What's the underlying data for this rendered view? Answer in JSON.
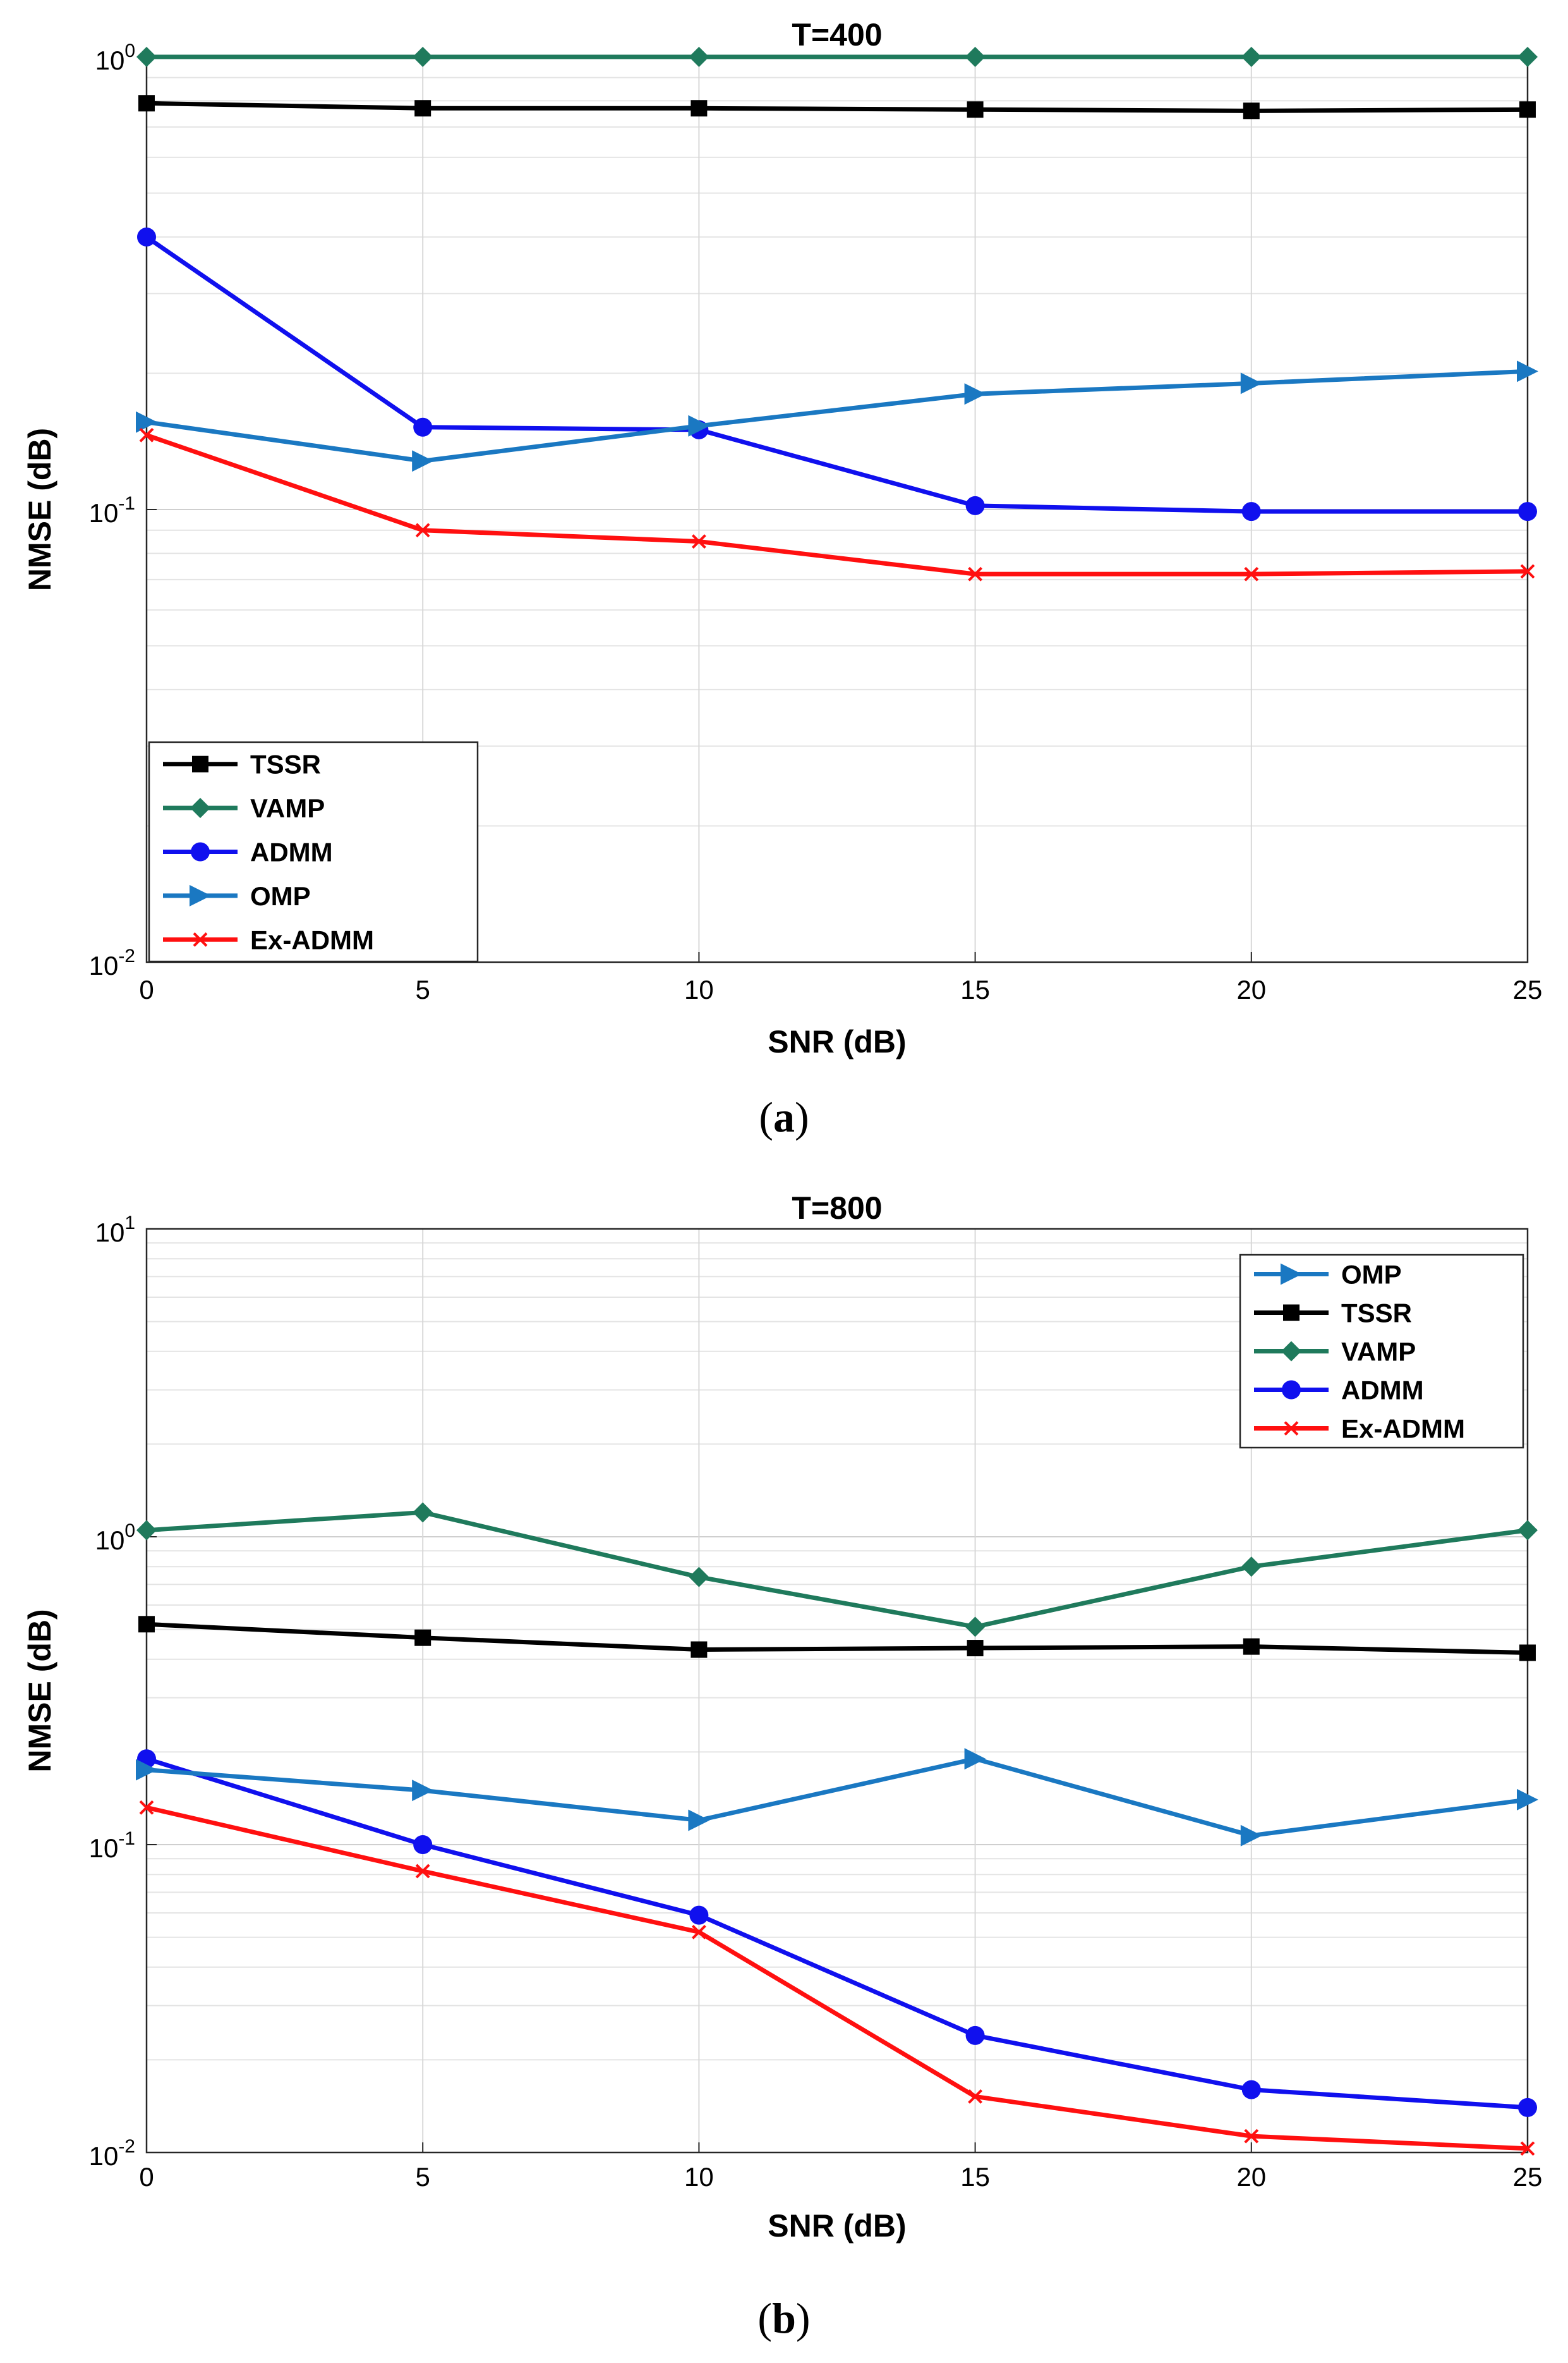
{
  "chart_data": [
    {
      "type": "line",
      "title": "T=400",
      "xlabel": "SNR (dB)",
      "ylabel": "NMSE (dB)",
      "caption": "(a)",
      "x": [
        0,
        5,
        10,
        15,
        20,
        25
      ],
      "x_ticks": [
        "0",
        "5",
        "10",
        "15",
        "20",
        "25"
      ],
      "y_scale": "log",
      "ylim": [
        0.01,
        1
      ],
      "y_ticks": [
        {
          "base": "10",
          "exp": "0",
          "value": 1
        },
        {
          "base": "10",
          "exp": "-1",
          "value": 0.1
        },
        {
          "base": "10",
          "exp": "-2",
          "value": 0.01
        }
      ],
      "grid": true,
      "legend_position": "bottom-left",
      "legend_order": [
        "TSSR",
        "VAMP",
        "ADMM",
        "OMP",
        "Ex-ADMM"
      ],
      "series": [
        {
          "name": "TSSR",
          "color": "#000000",
          "marker": "square",
          "values": [
            0.79,
            0.77,
            0.77,
            0.765,
            0.76,
            0.765
          ]
        },
        {
          "name": "VAMP",
          "color": "#1f7a5c",
          "marker": "diamond",
          "values": [
            1.0,
            1.0,
            1.0,
            1.0,
            1.0,
            1.0
          ]
        },
        {
          "name": "ADMM",
          "color": "#1010ee",
          "marker": "circle",
          "values": [
            0.4,
            0.152,
            0.15,
            0.102,
            0.099,
            0.099
          ]
        },
        {
          "name": "OMP",
          "color": "#1a78c2",
          "marker": "triangle-right",
          "values": [
            0.156,
            0.128,
            0.153,
            0.18,
            0.19,
            0.202
          ]
        },
        {
          "name": "Ex-ADMM",
          "color": "#ff1010",
          "marker": "x",
          "values": [
            0.146,
            0.09,
            0.085,
            0.072,
            0.072,
            0.073
          ]
        }
      ]
    },
    {
      "type": "line",
      "title": "T=800",
      "xlabel": "SNR (dB)",
      "ylabel": "NMSE (dB)",
      "caption": "(b)",
      "x": [
        0,
        5,
        10,
        15,
        20,
        25
      ],
      "x_ticks": [
        "0",
        "5",
        "10",
        "15",
        "20",
        "25"
      ],
      "y_scale": "log",
      "ylim": [
        0.01,
        10
      ],
      "y_ticks": [
        {
          "base": "10",
          "exp": "1",
          "value": 10
        },
        {
          "base": "10",
          "exp": "0",
          "value": 1
        },
        {
          "base": "10",
          "exp": "-1",
          "value": 0.1
        },
        {
          "base": "10",
          "exp": "-2",
          "value": 0.01
        }
      ],
      "grid": true,
      "legend_position": "top-right",
      "legend_order": [
        "OMP",
        "TSSR",
        "VAMP",
        "ADMM",
        "Ex-ADMM"
      ],
      "series": [
        {
          "name": "TSSR",
          "color": "#000000",
          "marker": "square",
          "values": [
            0.52,
            0.47,
            0.43,
            0.435,
            0.44,
            0.42
          ]
        },
        {
          "name": "VAMP",
          "color": "#1f7a5c",
          "marker": "diamond",
          "values": [
            1.05,
            1.2,
            0.74,
            0.51,
            0.8,
            1.05
          ]
        },
        {
          "name": "ADMM",
          "color": "#1010ee",
          "marker": "circle",
          "values": [
            0.19,
            0.1,
            0.059,
            0.024,
            0.016,
            0.014
          ]
        },
        {
          "name": "OMP",
          "color": "#1a78c2",
          "marker": "triangle-right",
          "values": [
            0.175,
            0.15,
            0.12,
            0.19,
            0.107,
            0.14
          ]
        },
        {
          "name": "Ex-ADMM",
          "color": "#ff1010",
          "marker": "x",
          "values": [
            0.132,
            0.082,
            0.052,
            0.0152,
            0.0113,
            0.0103
          ]
        }
      ]
    }
  ]
}
